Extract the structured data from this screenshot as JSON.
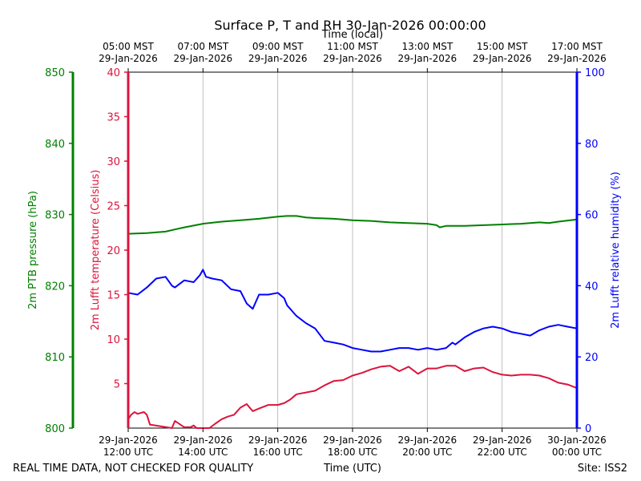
{
  "colors": {
    "pressure": "#008000",
    "temperature": "#dc143c",
    "humidity": "#0000ff",
    "grid": "#b0b0b0",
    "frame": "#000000"
  },
  "chart_data": {
    "type": "line",
    "title": "Surface P, T and RH 30-Jan-2026 00:00:00",
    "xlabel": "Time (UTC)",
    "xlabel_top": "Time (local)",
    "footer_left": "REAL TIME DATA, NOT CHECKED FOR QUALITY",
    "footer_right": "Site: ISS2",
    "x_range_hours": [
      12,
      24
    ],
    "x_ticks_bottom": [
      {
        "x": 12,
        "line1": "29-Jan-2026",
        "line2": "12:00 UTC"
      },
      {
        "x": 14,
        "line1": "29-Jan-2026",
        "line2": "14:00 UTC"
      },
      {
        "x": 16,
        "line1": "29-Jan-2026",
        "line2": "16:00 UTC"
      },
      {
        "x": 18,
        "line1": "29-Jan-2026",
        "line2": "18:00 UTC"
      },
      {
        "x": 20,
        "line1": "29-Jan-2026",
        "line2": "20:00 UTC"
      },
      {
        "x": 22,
        "line1": "29-Jan-2026",
        "line2": "22:00 UTC"
      },
      {
        "x": 24,
        "line1": "30-Jan-2026",
        "line2": "00:00 UTC"
      }
    ],
    "x_ticks_top": [
      {
        "x": 12,
        "line1": "05:00 MST",
        "line2": "29-Jan-2026"
      },
      {
        "x": 14,
        "line1": "07:00 MST",
        "line2": "29-Jan-2026"
      },
      {
        "x": 16,
        "line1": "09:00 MST",
        "line2": "29-Jan-2026"
      },
      {
        "x": 18,
        "line1": "11:00 MST",
        "line2": "29-Jan-2026"
      },
      {
        "x": 20,
        "line1": "13:00 MST",
        "line2": "29-Jan-2026"
      },
      {
        "x": 22,
        "line1": "15:00 MST",
        "line2": "29-Jan-2026"
      },
      {
        "x": 24,
        "line1": "17:00 MST",
        "line2": "29-Jan-2026"
      }
    ],
    "axes": {
      "pressure": {
        "label": "2m PTB pressure (hPa)",
        "ylim": [
          800,
          850
        ],
        "ticks": [
          800,
          810,
          820,
          830,
          840,
          850
        ]
      },
      "temperature": {
        "label": "2m Lufft temperature (Celsius)",
        "ylim": [
          0,
          40
        ],
        "ticks": [
          5,
          10,
          15,
          20,
          25,
          30,
          35,
          40
        ]
      },
      "humidity": {
        "label": "2m Lufft relative humidity (%)",
        "ylim": [
          0,
          100
        ],
        "ticks": [
          0,
          20,
          40,
          60,
          80,
          100
        ]
      }
    },
    "series": [
      {
        "name": "2m PTB pressure",
        "axis": "pressure",
        "x": [
          12.0,
          12.5,
          13.0,
          13.25,
          13.5,
          14.0,
          14.5,
          15.0,
          15.5,
          16.0,
          16.25,
          16.5,
          16.75,
          17.0,
          17.5,
          18.0,
          18.5,
          19.0,
          19.5,
          20.0,
          20.25,
          20.33,
          20.5,
          21.0,
          21.5,
          22.0,
          22.5,
          23.0,
          23.25,
          23.5,
          24.0
        ],
        "values": [
          827.3,
          827.4,
          827.6,
          827.9,
          828.2,
          828.7,
          829.0,
          829.2,
          829.4,
          829.7,
          829.8,
          829.8,
          829.6,
          829.5,
          829.4,
          829.2,
          829.1,
          828.9,
          828.8,
          828.7,
          828.5,
          828.2,
          828.4,
          828.4,
          828.5,
          828.6,
          828.7,
          828.9,
          828.8,
          829.0,
          829.3
        ]
      },
      {
        "name": "2m Lufft temperature",
        "axis": "temperature",
        "x": [
          12.0,
          12.08,
          12.17,
          12.25,
          12.42,
          12.5,
          12.58,
          13.17,
          13.25,
          13.5,
          13.67,
          13.75,
          13.83,
          14.0,
          14.17,
          14.33,
          14.5,
          14.67,
          14.83,
          15.0,
          15.17,
          15.33,
          15.5,
          15.75,
          16.0,
          16.17,
          16.33,
          16.5,
          16.75,
          17.0,
          17.25,
          17.5,
          17.75,
          18.0,
          18.25,
          18.5,
          18.75,
          19.0,
          19.25,
          19.5,
          19.75,
          20.0,
          20.25,
          20.5,
          20.75,
          21.0,
          21.25,
          21.5,
          21.75,
          22.0,
          22.25,
          22.5,
          22.75,
          23.0,
          23.25,
          23.5,
          23.75,
          24.0
        ],
        "values": [
          1.0,
          1.5,
          1.8,
          1.6,
          1.8,
          1.5,
          0.4,
          0.0,
          0.8,
          0.1,
          0.1,
          0.3,
          0.0,
          0.0,
          0.0,
          0.5,
          1.0,
          1.3,
          1.5,
          2.3,
          2.7,
          1.9,
          2.2,
          2.6,
          2.6,
          2.8,
          3.2,
          3.8,
          4.0,
          4.2,
          4.8,
          5.3,
          5.4,
          5.9,
          6.2,
          6.6,
          6.9,
          7.0,
          6.4,
          6.9,
          6.1,
          6.7,
          6.7,
          7.0,
          7.0,
          6.4,
          6.7,
          6.8,
          6.3,
          6.0,
          5.9,
          6.0,
          6.0,
          5.9,
          5.6,
          5.1,
          4.9,
          4.5
        ]
      },
      {
        "name": "2m Lufft relative humidity",
        "axis": "humidity",
        "x": [
          12.0,
          12.25,
          12.5,
          12.75,
          13.0,
          13.17,
          13.25,
          13.5,
          13.75,
          13.92,
          14.0,
          14.08,
          14.25,
          14.5,
          14.75,
          15.0,
          15.17,
          15.33,
          15.5,
          15.75,
          16.0,
          16.17,
          16.25,
          16.5,
          16.75,
          17.0,
          17.25,
          17.5,
          17.75,
          18.0,
          18.25,
          18.5,
          18.75,
          19.0,
          19.25,
          19.5,
          19.75,
          20.0,
          20.25,
          20.5,
          20.67,
          20.75,
          21.0,
          21.25,
          21.5,
          21.75,
          22.0,
          22.25,
          22.5,
          22.75,
          23.0,
          23.25,
          23.5,
          23.75,
          24.0
        ],
        "values": [
          38.0,
          37.5,
          39.5,
          42.0,
          42.5,
          40.0,
          39.5,
          41.5,
          41.0,
          43.0,
          44.5,
          42.5,
          42.0,
          41.5,
          39.0,
          38.5,
          35.0,
          33.5,
          37.5,
          37.5,
          38.0,
          36.5,
          34.5,
          31.5,
          29.5,
          28.0,
          24.5,
          24.0,
          23.5,
          22.5,
          22.0,
          21.5,
          21.5,
          22.0,
          22.5,
          22.5,
          22.0,
          22.5,
          22.0,
          22.5,
          24.0,
          23.5,
          25.5,
          27.0,
          28.0,
          28.5,
          28.0,
          27.0,
          26.5,
          26.0,
          27.5,
          28.5,
          29.0,
          28.5,
          28.0
        ]
      }
    ]
  }
}
